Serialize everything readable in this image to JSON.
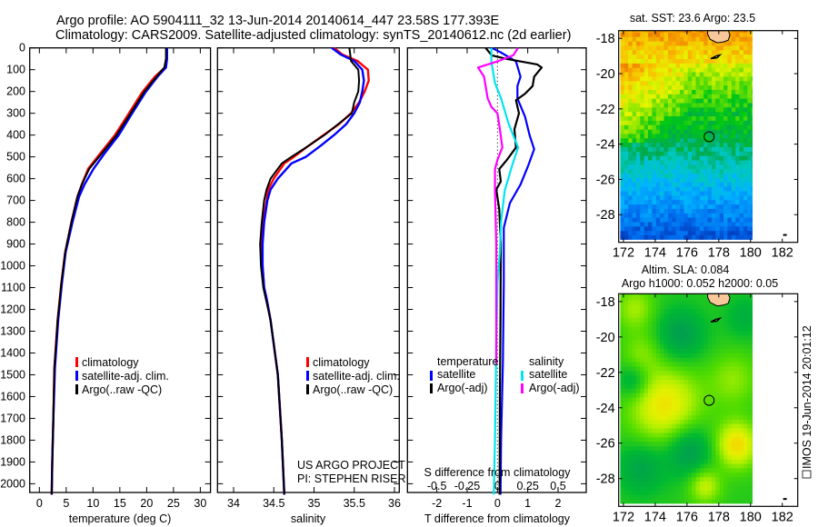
{
  "header": {
    "title_line1": "Argo profile: AO 5904111_32 13-Jun-2014 20140614_447 23.58S 177.393E",
    "title_line2": "Climatology: CARS2009. Satellite-adjusted climatology: synTS_20140612.nc (2d earlier)"
  },
  "colors": {
    "climatology": "#ff0000",
    "satellite": "#0000ff",
    "argo": "#000000",
    "s_satellite": "#00e5ee",
    "s_argo": "#ff00ff",
    "land": "#f8c89a"
  },
  "depth_axis": {
    "ticks": [
      0,
      100,
      200,
      300,
      400,
      500,
      600,
      700,
      800,
      900,
      1000,
      1100,
      1200,
      1300,
      1400,
      1500,
      1600,
      1700,
      1800,
      1900,
      2000
    ],
    "labels": [
      "0",
      "100",
      "200",
      "300",
      "400",
      "500",
      "600",
      "700",
      "800",
      "900",
      "1000",
      "1100",
      "1200",
      "1300",
      "1400",
      "1500",
      "1600",
      "1700",
      "1800",
      "1900",
      "2000"
    ],
    "range": [
      0,
      2040
    ]
  },
  "legend_profiles": {
    "climatology": "climatology",
    "satellite": "satellite-adj. clim.",
    "argo": "Argo(..raw -QC)"
  },
  "legend_diff": {
    "temperature": "temperature",
    "salinity": "salinity",
    "t_satellite": "satellite",
    "t_argo": "Argo(-adj)",
    "s_satellite": "satellite",
    "s_argo": "Argo(-adj)"
  },
  "credit": {
    "line1": "US ARGO PROJECT",
    "line2": "PI: STEPHEN RISER"
  },
  "watermark": "IMOS 19-Jun-2014 20:01:12",
  "chart_data": [
    {
      "type": "line",
      "title": "",
      "xlabel": "temperature (deg C)",
      "ylabel": "depth",
      "xlim": [
        -1.8,
        31.9
      ],
      "xticks": [
        0,
        5,
        10,
        15,
        20,
        25,
        30
      ],
      "xtick_labels": [
        "0",
        "5",
        "10",
        "15",
        "20",
        "25",
        "30"
      ],
      "ylim": [
        2040,
        0
      ],
      "depth": [
        0,
        50,
        90,
        133,
        203,
        300,
        400,
        486,
        555,
        627,
        683,
        797,
        938,
        1080,
        1250,
        1470,
        1700,
        1900,
        2050
      ],
      "series": [
        {
          "name": "climatology",
          "color": "#ff0000",
          "values": [
            23.7,
            23.7,
            23.4,
            21.5,
            19.2,
            16.7,
            14.1,
            11.3,
            9.1,
            7.9,
            7.1,
            6.0,
            4.8,
            4.1,
            3.4,
            2.8,
            2.6,
            2.4,
            2.3
          ]
        },
        {
          "name": "satellite-adj. clim.",
          "color": "#0000ff",
          "values": [
            23.8,
            23.8,
            23.6,
            22.0,
            19.8,
            17.3,
            14.8,
            12.1,
            10.1,
            8.4,
            7.4,
            6.2,
            4.9,
            4.2,
            3.5,
            2.9,
            2.6,
            2.4,
            2.3
          ]
        },
        {
          "name": "Argo(..raw -QC)",
          "color": "#000000",
          "values": [
            23.6,
            23.6,
            23.3,
            21.8,
            19.5,
            17.0,
            14.4,
            11.6,
            9.3,
            7.9,
            7.1,
            6.0,
            4.8,
            4.1,
            3.4,
            2.8,
            2.6,
            2.4,
            2.3
          ]
        }
      ]
    },
    {
      "type": "line",
      "xlabel": "salinity",
      "xlim": [
        33.8,
        36.06
      ],
      "xticks": [
        34,
        34.5,
        35,
        35.5,
        36
      ],
      "xtick_labels": [
        "34",
        "34.5",
        "35",
        "35.5",
        "36"
      ],
      "ylim": [
        2040,
        0
      ],
      "depth": [
        0,
        30,
        60,
        100,
        150,
        200,
        250,
        300,
        350,
        400,
        450,
        500,
        530,
        600,
        650,
        700,
        800,
        900,
        1000,
        1100,
        1150,
        1250,
        1500,
        1800,
        2050
      ],
      "series": [
        {
          "name": "climatology",
          "color": "#ff0000",
          "values": [
            35.25,
            35.35,
            35.54,
            35.67,
            35.68,
            35.63,
            35.56,
            35.46,
            35.31,
            35.12,
            34.93,
            34.75,
            34.63,
            34.5,
            34.43,
            34.41,
            34.37,
            34.35,
            34.36,
            34.38,
            34.41,
            34.46,
            34.55,
            34.6,
            34.63
          ]
        },
        {
          "name": "satellite-adj. clim.",
          "color": "#0000ff",
          "values": [
            35.22,
            35.33,
            35.5,
            35.6,
            35.62,
            35.6,
            35.57,
            35.5,
            35.4,
            35.25,
            35.08,
            34.9,
            34.72,
            34.55,
            34.46,
            34.42,
            34.38,
            34.36,
            34.36,
            34.38,
            34.41,
            34.46,
            34.55,
            34.6,
            34.63
          ]
        },
        {
          "name": "Argo(..raw -QC)",
          "color": "#000000",
          "values": [
            35.44,
            35.45,
            35.46,
            35.55,
            35.56,
            35.55,
            35.5,
            35.47,
            35.3,
            35.13,
            34.93,
            34.72,
            34.6,
            34.46,
            34.41,
            34.38,
            34.35,
            34.33,
            34.34,
            34.37,
            34.4,
            34.46,
            34.55,
            34.6,
            34.63
          ]
        }
      ]
    },
    {
      "type": "line",
      "xlabel": "T difference from climatology",
      "xlabel2": "S difference from climatology",
      "xlim": [
        -2.97,
        2.93
      ],
      "xticks": [
        -2,
        -1,
        0,
        1,
        2
      ],
      "xtick_labels": [
        "-2",
        "-1",
        "0",
        "1",
        "2"
      ],
      "s_xticks": [
        -0.5,
        -0.25,
        0,
        0.25,
        0.5
      ],
      "s_xtick_labels": [
        "-0.5",
        "-0.25",
        "0",
        "0.25",
        "0.5"
      ],
      "s_to_t_scale": 4,
      "ylim": [
        2040,
        0
      ],
      "series": [
        {
          "name": "temperature satellite",
          "color": "#0000ff",
          "quantity": "T",
          "depth": [
            0,
            20,
            62,
            132,
            175,
            232,
            316,
            401,
            465,
            542,
            627,
            712,
            825,
            1079,
            1446,
            1800,
            2050
          ],
          "values": [
            -0.19,
            0.1,
            0.61,
            0.76,
            0.66,
            0.66,
            0.91,
            1.06,
            1.21,
            1.01,
            0.76,
            0.41,
            0.21,
            0.21,
            0.18,
            0.12,
            0.1
          ]
        },
        {
          "name": "temperature Argo(-adj)",
          "color": "#000000",
          "quantity": "T",
          "depth": [
            0,
            34,
            50,
            76,
            90,
            132,
            175,
            210,
            240,
            300,
            373,
            457,
            514,
            556,
            613,
            650,
            740,
            900,
            1220,
            1600,
            2050
          ],
          "values": [
            -0.39,
            -0.19,
            0.28,
            1.31,
            1.46,
            1.21,
            1.16,
            0.91,
            0.61,
            0.71,
            0.56,
            0.61,
            0.31,
            0.06,
            0.11,
            -0.04,
            0.06,
            0.11,
            0.1,
            0.08,
            0.07
          ]
        },
        {
          "name": "salinity satellite",
          "color": "#00e5ee",
          "quantity": "S",
          "depth": [
            0,
            62,
            161,
            232,
            344,
            457,
            542,
            655,
            797,
            937,
            1080,
            1360,
            1800,
            2050
          ],
          "values": [
            -0.05,
            -0.05,
            -0.02,
            0.03,
            0.09,
            0.17,
            0.12,
            0.06,
            0.03,
            0.02,
            0.0,
            -0.01,
            -0.02,
            -0.03
          ]
        },
        {
          "name": "salinity Argo(-adj)",
          "color": "#ff00ff",
          "quantity": "S",
          "depth": [
            0,
            34,
            62,
            90,
            132,
            232,
            270,
            300,
            373,
            457,
            514,
            556,
            655,
            900,
            1200,
            1450
          ],
          "values": [
            0.17,
            0.13,
            0.0,
            -0.16,
            -0.11,
            -0.08,
            -0.05,
            0.0,
            0.02,
            0.04,
            0.0,
            -0.02,
            -0.02,
            -0.01,
            -0.01,
            -0.01
          ]
        }
      ]
    },
    {
      "type": "heatmap",
      "title": "sat. SST: 23.6 Argo: 23.5",
      "field": "sst",
      "lon_range": [
        171.7,
        182.97
      ],
      "lat_range": [
        -29.57,
        -17.56
      ],
      "data_lon_max": 180.1,
      "xticks": [
        172,
        174,
        176,
        178,
        180,
        182
      ],
      "xtick_labels": [
        "172",
        "174",
        "176",
        "178",
        "180",
        "182"
      ],
      "yticks": [
        -18,
        -20,
        -22,
        -24,
        -26,
        -28
      ],
      "ytick_labels": [
        "-18",
        "-20",
        "-22",
        "-24",
        "-26",
        "-28"
      ],
      "float_position": [
        177.393,
        -23.58
      ]
    },
    {
      "type": "heatmap",
      "title": "Altim. SLA: 0.084",
      "subtitle": "Argo h1000: 0.052 h2000: 0.05",
      "field": "sla",
      "lon_range": [
        171.7,
        182.97
      ],
      "lat_range": [
        -29.57,
        -17.56
      ],
      "data_lon_max": 180.1,
      "xticks": [
        172,
        174,
        176,
        178,
        180,
        182
      ],
      "xtick_labels": [
        "172",
        "174",
        "176",
        "178",
        "180",
        "182"
      ],
      "yticks": [
        -18,
        -20,
        -22,
        -24,
        -26,
        -28
      ],
      "ytick_labels": [
        "-18",
        "-20",
        "-22",
        "-24",
        "-26",
        "-28"
      ],
      "float_position": [
        177.393,
        -23.58
      ]
    }
  ]
}
